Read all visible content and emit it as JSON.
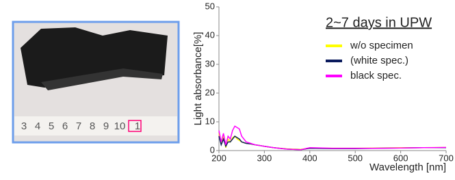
{
  "photo": {
    "ruler_labels": [
      "3",
      "4",
      "5",
      "6",
      "7",
      "8",
      "9",
      "10",
      "1"
    ]
  },
  "chart_data": {
    "type": "line",
    "title": "2~7 days in UPW",
    "x_label": "Wavelength [nm]",
    "y_label": "Light absorbance[%]",
    "x": [
      200,
      205,
      210,
      215,
      220,
      225,
      230,
      235,
      240,
      245,
      250,
      260,
      270,
      280,
      300,
      320,
      350,
      380,
      400,
      450,
      500,
      550,
      600,
      650,
      700
    ],
    "series": [
      {
        "name": "w/o specimen",
        "color": "#ffff00",
        "values": [
          6,
          2,
          5,
          1,
          4,
          3,
          4.5,
          5,
          4,
          3.5,
          3,
          2.5,
          2.3,
          2,
          1.5,
          1,
          0.6,
          0.4,
          0.9,
          0.8,
          0.8,
          0.9,
          1,
          1,
          1.1
        ]
      },
      {
        "name": "(white spec.)",
        "color": "#0a1a5c",
        "values": [
          5,
          2,
          4,
          1.5,
          3,
          3,
          4,
          5,
          4.5,
          4,
          3,
          2.5,
          2.3,
          2,
          1.5,
          1,
          0.5,
          0.3,
          0.8,
          0.7,
          0.7,
          0.8,
          0.9,
          1,
          1
        ]
      },
      {
        "name": "black spec.",
        "color": "#ff00ff",
        "values": [
          7,
          3,
          6,
          2,
          5,
          4,
          7,
          8.5,
          8,
          7.5,
          5,
          3,
          2.5,
          2,
          1.5,
          1,
          0.5,
          0.3,
          1,
          0.8,
          0.8,
          0.8,
          0.9,
          1,
          1.1
        ]
      }
    ],
    "xlim": [
      200,
      700
    ],
    "xticks": [
      200,
      300,
      400,
      500,
      600,
      700
    ],
    "ylim": [
      0,
      50
    ],
    "yticks": [
      0,
      10,
      20,
      30,
      40,
      50
    ]
  }
}
